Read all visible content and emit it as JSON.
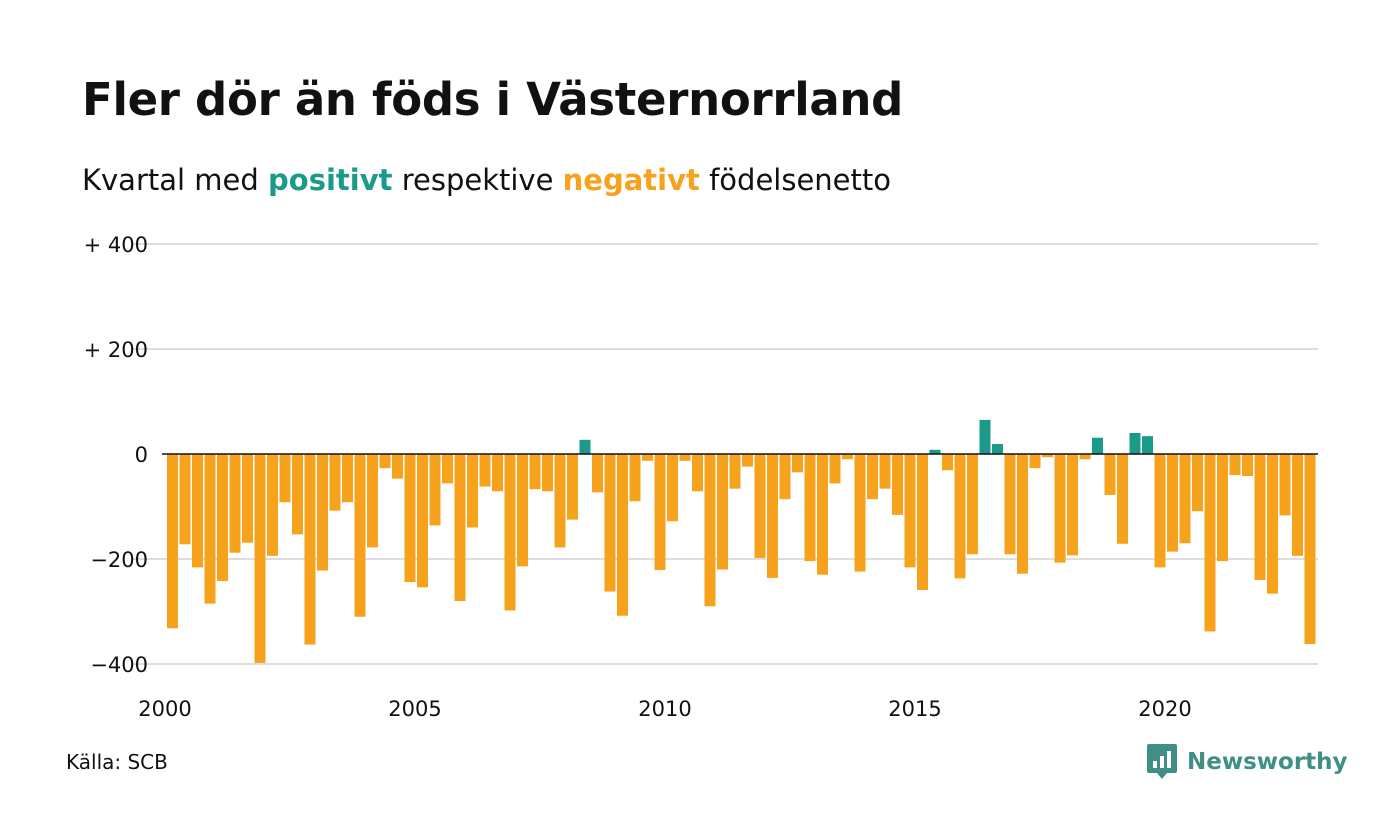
{
  "header": {
    "title": "Fler dör än föds i Västernorrland",
    "subtitle_before": "Kvartal med ",
    "subtitle_positive": "positivt",
    "subtitle_middle": " respektive ",
    "subtitle_negative": "negativt",
    "subtitle_after": " födelsenetto"
  },
  "footer": {
    "source": "Källa: SCB",
    "brand": "Newsworthy"
  },
  "colors": {
    "positive": "#1b9a8a",
    "negative": "#f7a21d",
    "grid": "#dddddd",
    "zero_line": "#111111",
    "brand": "#3f8f85"
  },
  "chart_data": {
    "type": "bar",
    "title": "Fler dör än föds i Västernorrland",
    "xlabel": "",
    "ylabel": "",
    "ylim": [
      -400,
      400
    ],
    "yticks": [
      {
        "value": 400,
        "label": "+ 400"
      },
      {
        "value": 200,
        "label": "+ 200"
      },
      {
        "value": 0,
        "label": "0"
      },
      {
        "value": -200,
        "label": "−200"
      },
      {
        "value": -400,
        "label": "−400"
      }
    ],
    "xticks": [
      "2000",
      "2005",
      "2010",
      "2015",
      "2020"
    ],
    "x_start": "2000 Q1",
    "period": "quarter",
    "grid": true,
    "legend": "none",
    "values": [
      -332,
      -172,
      -216,
      -285,
      -242,
      -188,
      -169,
      -398,
      -194,
      -92,
      -153,
      -363,
      -222,
      -108,
      -92,
      -310,
      -178,
      -27,
      -47,
      -244,
      -254,
      -136,
      -56,
      -280,
      -140,
      -62,
      -71,
      -298,
      -214,
      -67,
      -71,
      -178,
      -125,
      27,
      -73,
      -262,
      -308,
      -90,
      -13,
      -221,
      -128,
      -13,
      -71,
      -290,
      -220,
      -66,
      -24,
      -198,
      -236,
      -86,
      -35,
      -204,
      -230,
      -56,
      -10,
      -224,
      -86,
      -66,
      -116,
      -216,
      -259,
      8,
      -31,
      -237,
      -191,
      65,
      19,
      -191,
      -228,
      -27,
      -6,
      -207,
      -193,
      -10,
      31,
      -78,
      -171,
      40,
      34,
      -216,
      -186,
      -170,
      -109,
      -338,
      -204,
      -40,
      -42,
      -240,
      -266,
      -117,
      -194,
      -362
    ]
  }
}
